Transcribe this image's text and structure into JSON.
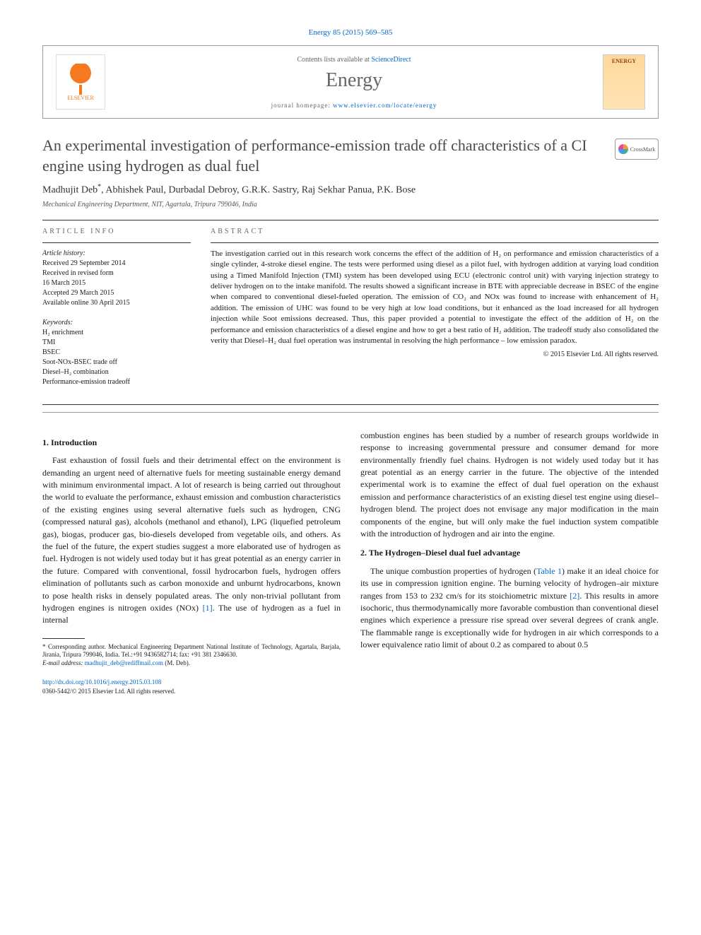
{
  "header_ref": "Energy 85 (2015) 569–585",
  "contents_prefix": "Contents lists available at ",
  "contents_link": "ScienceDirect",
  "journal_name": "Energy",
  "homepage_prefix": "journal homepage: ",
  "homepage_url": "www.elsevier.com/locate/energy",
  "elsevier_label": "ELSEVIER",
  "cover_label": "ENERGY",
  "crossmark_label": "CrossMark",
  "title": "An experimental investigation of performance-emission trade off characteristics of a CI engine using hydrogen as dual fuel",
  "authors_html": "Madhujit Deb<sup>*</sup>, Abhishek Paul, Durbadal Debroy, G.R.K. Sastry, Raj Sekhar Panua, P.K. Bose",
  "affiliation": "Mechanical Engineering Department, NIT, Agartala, Tripura 799046, India",
  "article_info_label": "ARTICLE INFO",
  "abstract_label": "ABSTRACT",
  "history": {
    "heading": "Article history:",
    "received": "Received 29 September 2014",
    "revised": "Received in revised form",
    "revised_date": "16 March 2015",
    "accepted": "Accepted 29 March 2015",
    "online": "Available online 30 April 2015"
  },
  "keywords": {
    "heading": "Keywords:",
    "items": [
      "H₂ enrichment",
      "TMI",
      "BSEC",
      "Soot-NOx-BSEC trade off",
      "Diesel–H₂ combination",
      "Performance-emission tradeoff"
    ]
  },
  "abstract": "The investigation carried out in this research work concerns the effect of the addition of H₂ on performance and emission characteristics of a single cylinder, 4-stroke diesel engine. The tests were performed using diesel as a pilot fuel, with hydrogen addition at varying load condition using a Timed Manifold Injection (TMI) system has been developed using ECU (electronic control unit) with varying injection strategy to deliver hydrogen on to the intake manifold. The results showed a significant increase in BTE with appreciable decrease in BSEC of the engine when compared to conventional diesel-fueled operation. The emission of CO₂ and NOx was found to increase with enhancement of H₂ addition. The emission of UHC was found to be very high at low load conditions, but it enhanced as the load increased for all hydrogen injection while Soot emissions decreased. Thus, this paper provided a potential to investigate the effect of the addition of H₂ on the performance and emission characteristics of a diesel engine and how to get a best ratio of H₂ addition. The tradeoff study also consolidated the verity that Diesel–H₂ dual fuel operation was instrumental in resolving the high performance – low emission paradox.",
  "abstract_copyright": "© 2015 Elsevier Ltd. All rights reserved.",
  "sections": {
    "intro_head": "1. Introduction",
    "intro_p1": "Fast exhaustion of fossil fuels and their detrimental effect on the environment is demanding an urgent need of alternative fuels for meeting sustainable energy demand with minimum environmental impact. A lot of research is being carried out throughout the world to evaluate the performance, exhaust emission and combustion characteristics of the existing engines using several alternative fuels such as hydrogen, CNG (compressed natural gas), alcohols (methanol and ethanol), LPG (liquefied petroleum gas), biogas, producer gas, bio-diesels developed from vegetable oils, and others. As the fuel of the future, the expert studies suggest a more elaborated use of hydrogen as fuel. Hydrogen is not widely used today but it has great potential as an energy carrier in the future. Compared with conventional, fossil hydrocarbon fuels, hydrogen offers elimination of pollutants such as carbon monoxide and unburnt hydrocarbons, known to pose health risks in densely populated areas. The only non-trivial pollutant from hydrogen engines is nitrogen oxides (NOx) ",
    "intro_ref1": "[1]",
    "intro_p1_tail": ". The use of hydrogen as a fuel in internal",
    "col2_p1": "combustion engines has been studied by a number of research groups worldwide in response to increasing governmental pressure and consumer demand for more environmentally friendly fuel chains. Hydrogen is not widely used today but it has great potential as an energy carrier in the future. The objective of the intended experimental work is to examine the effect of dual fuel operation on the exhaust emission and performance characteristics of an existing diesel test engine using diesel–hydrogen blend. The project does not envisage any major modification in the main components of the engine, but will only make the fuel induction system compatible with the introduction of hydrogen and air into the engine.",
    "sec2_head": "2. The Hydrogen–Diesel dual fuel advantage",
    "sec2_p1_a": "The unique combustion properties of hydrogen (",
    "sec2_table_ref": "Table 1",
    "sec2_p1_b": ") make it an ideal choice for its use in compression ignition engine. The burning velocity of hydrogen–air mixture ranges from 153 to 232 cm/s for its stoichiometric mixture ",
    "sec2_ref2": "[2]",
    "sec2_p1_c": ". This results in amore isochoric, thus thermodynamically more favorable combustion than conventional diesel engines which experience a pressure rise spread over several degrees of crank angle. The flammable range is exceptionally wide for hydrogen in air which corresponds to a lower equivalence ratio limit of about 0.2 as compared to about 0.5"
  },
  "footnote": {
    "corr": "* Corresponding author. Mechanical Engineering Department National Institute of Technology, Agartala, Barjala, Jirania, Tripura 799046, India. Tel.:+91 9436582714; fax: +91 381 2346630.",
    "email_label": "E-mail address: ",
    "email": "madhujit_deb@rediffmail.com",
    "email_tail": " (M. Deb)."
  },
  "footer": {
    "doi": "http://dx.doi.org/10.1016/j.energy.2015.03.108",
    "issn_line": "0360-5442/© 2015 Elsevier Ltd. All rights reserved."
  }
}
